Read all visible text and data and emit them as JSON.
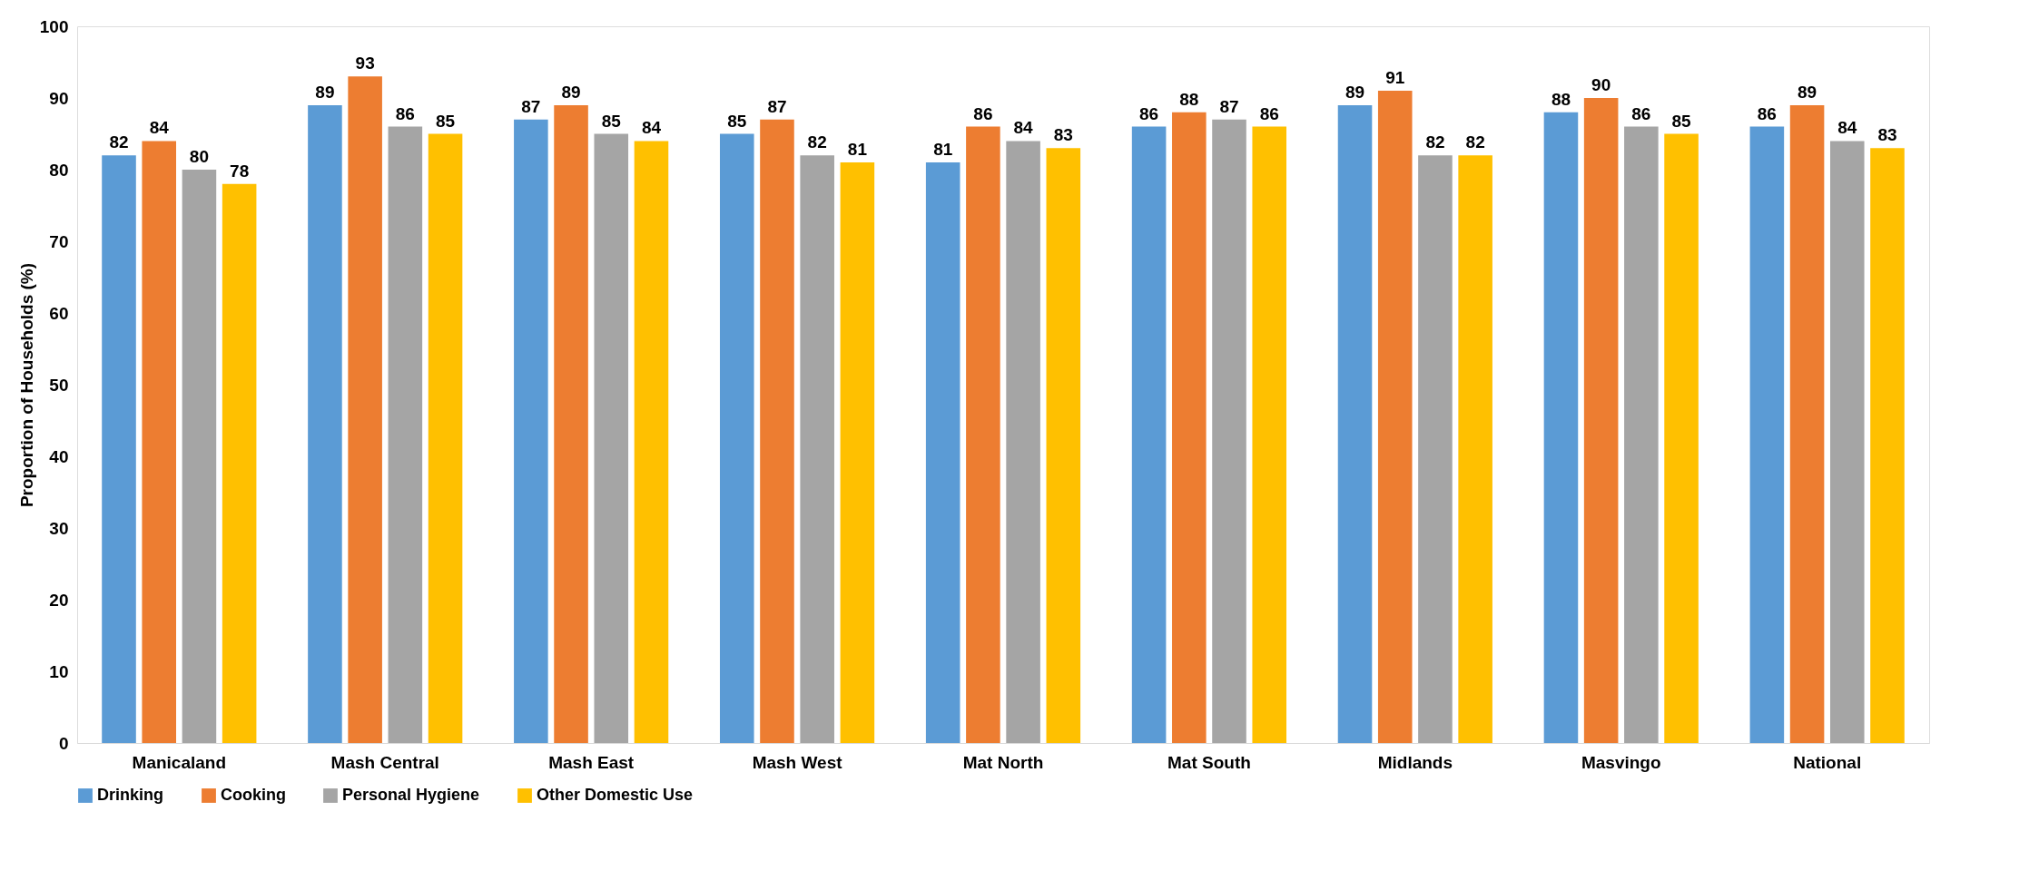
{
  "chart_data": {
    "type": "bar",
    "ylabel": "Proportion of Households (%)",
    "categories": [
      "Manicaland",
      "Mash Central",
      "Mash East",
      "Mash West",
      "Mat North",
      "Mat South",
      "Midlands",
      "Masvingo",
      "National"
    ],
    "series": [
      {
        "name": "Drinking",
        "color": "#5b9bd5",
        "values": [
          82,
          89,
          87,
          85,
          81,
          86,
          89,
          88,
          86
        ]
      },
      {
        "name": "Cooking",
        "color": "#ed7d31",
        "values": [
          84,
          93,
          89,
          87,
          86,
          88,
          91,
          90,
          89
        ]
      },
      {
        "name": "Personal Hygiene",
        "color": "#a5a5a5",
        "values": [
          80,
          86,
          85,
          82,
          84,
          87,
          82,
          86,
          84
        ]
      },
      {
        "name": "Other Domestic Use",
        "color": "#ffc000",
        "values": [
          78,
          85,
          84,
          81,
          83,
          86,
          82,
          85,
          83
        ]
      }
    ],
    "ylim": [
      0,
      100
    ],
    "yticks": [
      0,
      10,
      20,
      30,
      40,
      50,
      60,
      70,
      80,
      90,
      100
    ],
    "data_labels": true,
    "legend": "bottom",
    "grid": false
  }
}
